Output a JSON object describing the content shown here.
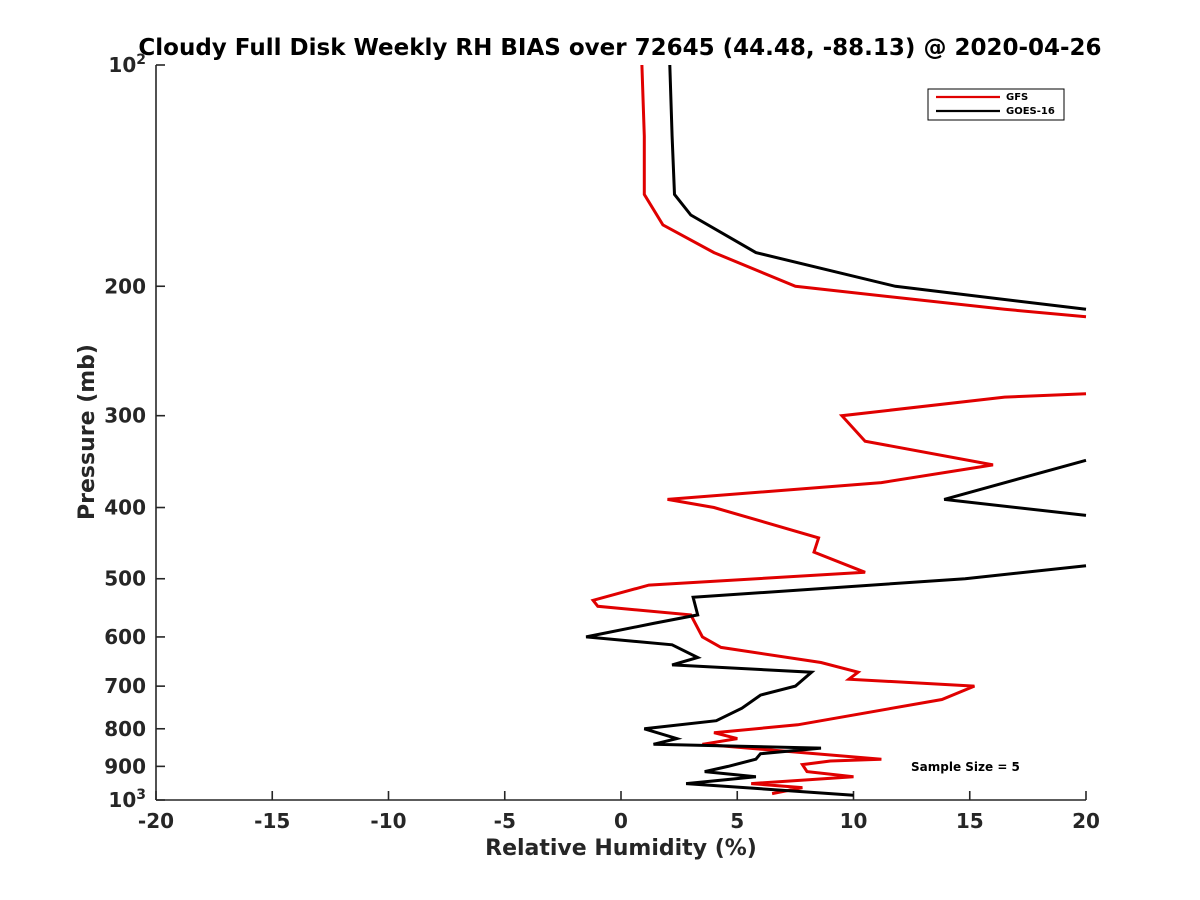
{
  "chart_data": {
    "type": "line",
    "title": "Cloudy Full Disk Weekly RH BIAS over 72645 (44.48, -88.13) @ 2020-04-26",
    "xlabel": "Relative Humidity (%)",
    "ylabel": "Pressure (mb)",
    "xlim": [
      -20,
      20
    ],
    "ylim": [
      100,
      1000
    ],
    "yscale": "log",
    "yreversed": true,
    "grid": false,
    "legend_position": "top-right",
    "x_ticks": [
      -20,
      -15,
      -10,
      -5,
      0,
      5,
      10,
      15,
      20
    ],
    "x_tick_labels": [
      "-20",
      "-15",
      "-10",
      "-5",
      "0",
      "5",
      "10",
      "15",
      "20"
    ],
    "y_ticks": [
      100,
      200,
      300,
      400,
      500,
      600,
      700,
      800,
      900,
      1000
    ],
    "y_tick_labels": [
      {
        "text": "10",
        "sup": "2"
      },
      {
        "text": "200",
        "sup": ""
      },
      {
        "text": "300",
        "sup": ""
      },
      {
        "text": "400",
        "sup": ""
      },
      {
        "text": "500",
        "sup": ""
      },
      {
        "text": "600",
        "sup": ""
      },
      {
        "text": "700",
        "sup": ""
      },
      {
        "text": "800",
        "sup": ""
      },
      {
        "text": "900",
        "sup": ""
      },
      {
        "text": "10",
        "sup": "3"
      }
    ],
    "annotation": "Sample Size = 5",
    "series": [
      {
        "name": "GFS",
        "color": "#e00000",
        "segments": [
          [
            [
              0.9,
              100
            ],
            [
              1.0,
              125
            ],
            [
              1.0,
              150
            ],
            [
              1.8,
              165
            ],
            [
              4.0,
              180
            ],
            [
              7.5,
              200
            ],
            [
              16.5,
              215
            ],
            [
              20.0,
              220
            ]
          ],
          [
            [
              20.0,
              280
            ],
            [
              16.5,
              283
            ],
            [
              9.5,
              300
            ],
            [
              10.5,
              325
            ],
            [
              16.0,
              350
            ],
            [
              11.2,
              370
            ],
            [
              2.0,
              390
            ],
            [
              4.0,
              400
            ],
            [
              8.5,
              440
            ],
            [
              8.3,
              460
            ],
            [
              10.5,
              490
            ],
            [
              1.2,
              510
            ],
            [
              -1.2,
              535
            ],
            [
              -1.0,
              545
            ],
            [
              3.0,
              560
            ],
            [
              3.5,
              600
            ],
            [
              4.3,
              620
            ],
            [
              8.6,
              650
            ],
            [
              10.2,
              670
            ],
            [
              9.8,
              685
            ],
            [
              15.2,
              700
            ],
            [
              13.8,
              730
            ],
            [
              7.6,
              790
            ],
            [
              4.0,
              810
            ],
            [
              5.0,
              825
            ],
            [
              3.5,
              840
            ],
            [
              11.2,
              880
            ],
            [
              9.0,
              885
            ],
            [
              7.8,
              895
            ],
            [
              8.0,
              915
            ],
            [
              10.0,
              930
            ],
            [
              5.6,
              950
            ],
            [
              7.8,
              962
            ],
            [
              6.5,
              980
            ]
          ]
        ]
      },
      {
        "name": "GOES-16",
        "color": "#000000",
        "segments": [
          [
            [
              2.1,
              100
            ],
            [
              2.2,
              125
            ],
            [
              2.3,
              150
            ],
            [
              3.0,
              160
            ],
            [
              5.8,
              180
            ],
            [
              11.8,
              200
            ],
            [
              20.0,
              215
            ]
          ],
          [
            [
              20.0,
              345
            ],
            [
              13.9,
              390
            ],
            [
              20.0,
              410
            ]
          ],
          [
            [
              20.0,
              480
            ],
            [
              14.8,
              500
            ],
            [
              3.1,
              530
            ],
            [
              3.3,
              560
            ],
            [
              1.4,
              575
            ],
            [
              -1.5,
              600
            ],
            [
              2.2,
              615
            ],
            [
              3.3,
              640
            ],
            [
              2.2,
              655
            ],
            [
              8.2,
              670
            ],
            [
              7.5,
              700
            ],
            [
              6.0,
              720
            ],
            [
              5.2,
              750
            ],
            [
              4.1,
              780
            ],
            [
              1.0,
              800
            ],
            [
              2.4,
              825
            ],
            [
              1.4,
              840
            ],
            [
              8.6,
              850
            ],
            [
              6.0,
              865
            ],
            [
              5.8,
              880
            ],
            [
              4.6,
              900
            ],
            [
              3.6,
              915
            ],
            [
              5.8,
              930
            ],
            [
              2.8,
              950
            ],
            [
              10.0,
              985
            ]
          ]
        ]
      }
    ]
  }
}
